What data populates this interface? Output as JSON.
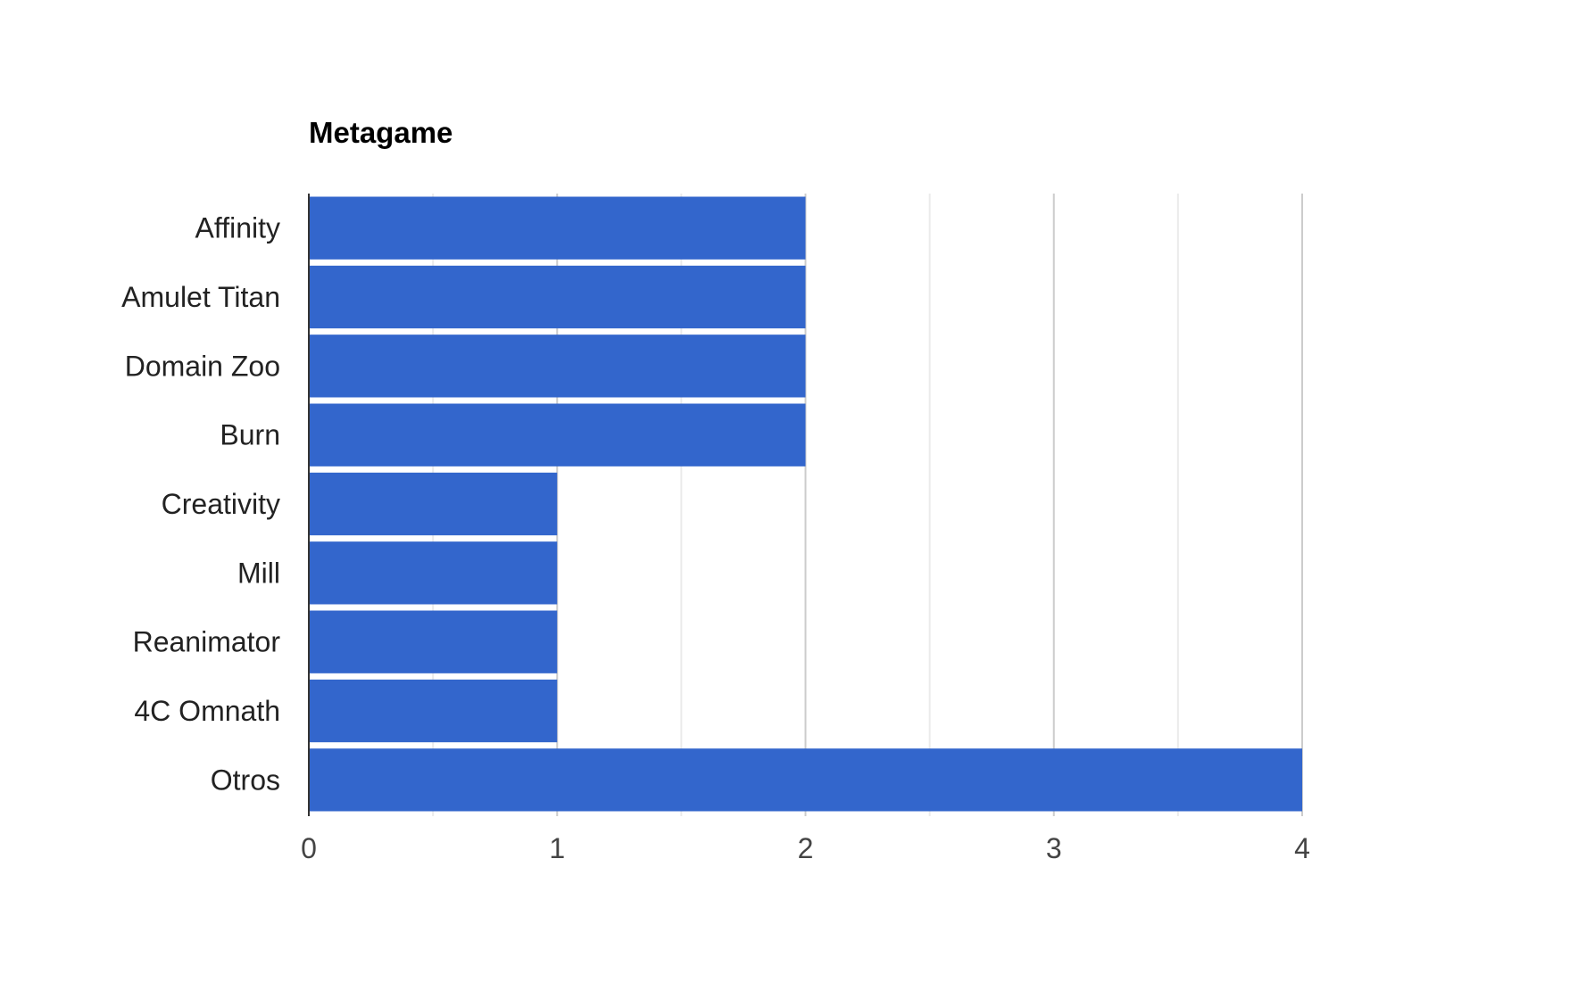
{
  "chart_data": {
    "type": "bar",
    "orientation": "horizontal",
    "title": "Metagame",
    "xlabel": "",
    "ylabel": "",
    "categories": [
      "Affinity",
      "Amulet Titan",
      "Domain Zoo",
      "Burn",
      "Creativity",
      "Mill",
      "Reanimator",
      "4C Omnath",
      "Otros"
    ],
    "values": [
      2,
      2,
      2,
      2,
      1,
      1,
      1,
      1,
      4
    ],
    "xlim": [
      0,
      4
    ],
    "xticks": [
      "0",
      "1",
      "2",
      "3",
      "4"
    ],
    "grid": true,
    "legend": "none",
    "bar_color": "#3366cc"
  }
}
